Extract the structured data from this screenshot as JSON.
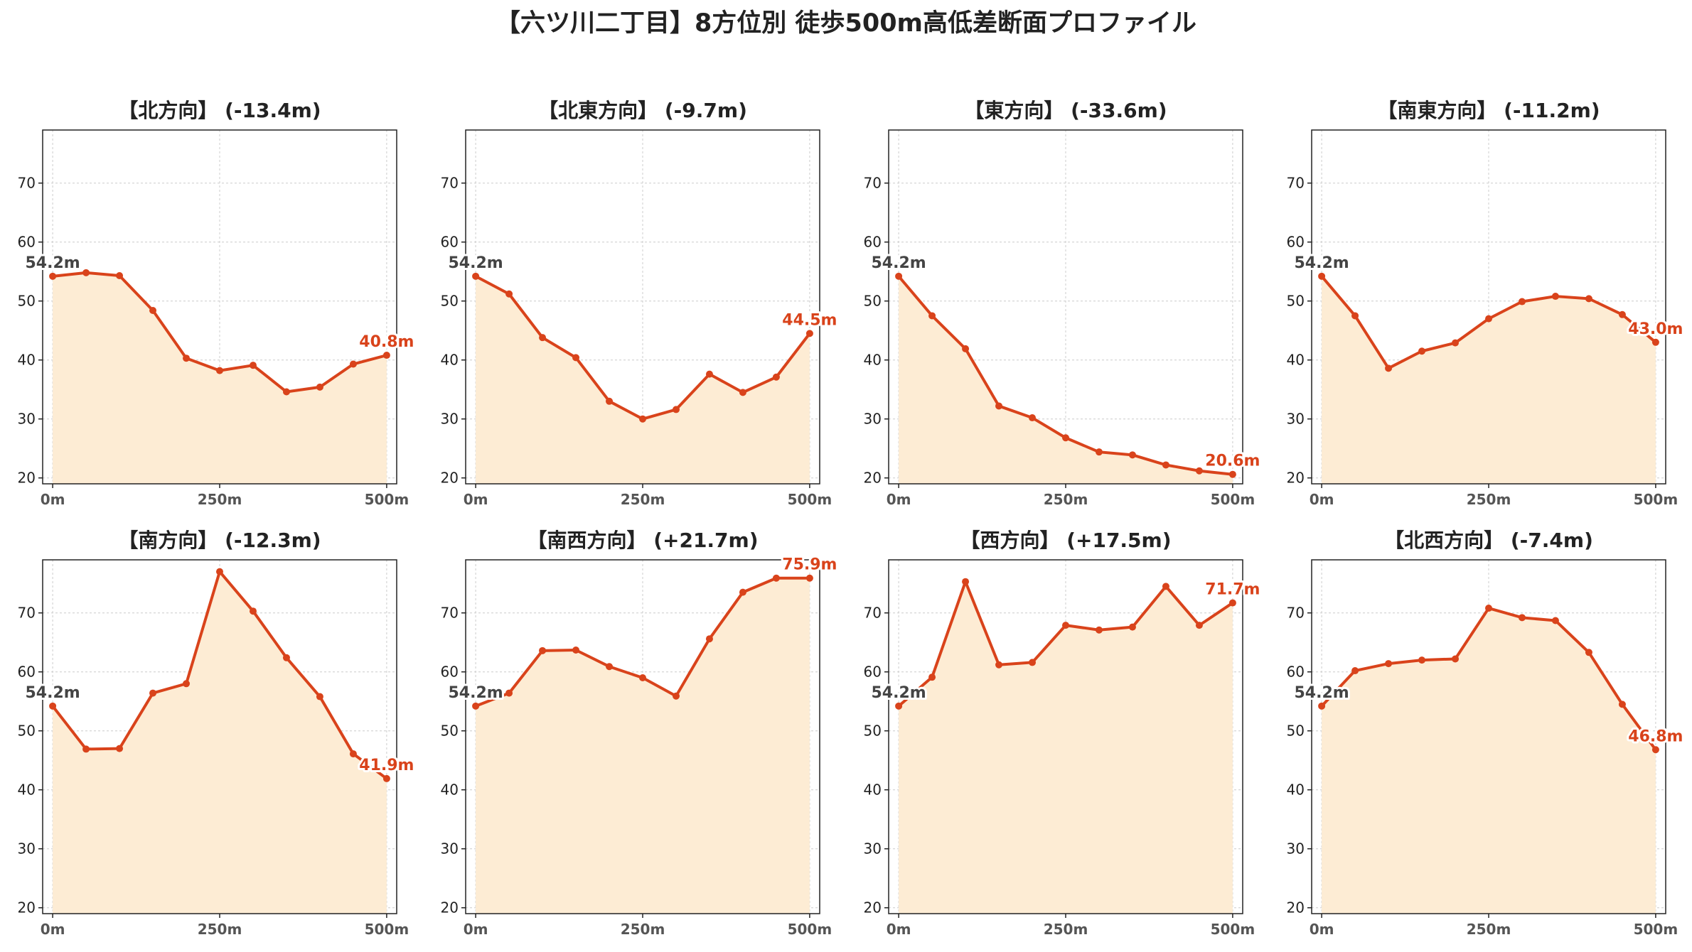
{
  "title": "【六ツ川二丁目】8方位別 徒歩500m高低差断面プロファイル",
  "colors": {
    "line": "#d9431b",
    "fill": "#fdecd4",
    "start_label": "#444444",
    "end_label": "#d9431b",
    "grid": "#cccccc"
  },
  "chart_data": [
    {
      "type": "area",
      "title": "【北方向】 (-13.4m)",
      "start_label": "54.2m",
      "end_label": "40.8m",
      "x": [
        0,
        50,
        100,
        150,
        200,
        250,
        300,
        350,
        400,
        450,
        500
      ],
      "values": [
        54.2,
        54.8,
        54.3,
        48.4,
        40.3,
        38.2,
        39.1,
        34.6,
        35.4,
        39.3,
        40.8
      ],
      "xticks": [
        "0m",
        "250m",
        "500m"
      ],
      "yticks": [
        20,
        30,
        40,
        50,
        60,
        70
      ],
      "ylim": [
        19,
        79
      ],
      "xlim": [
        -15,
        515
      ],
      "grid": true
    },
    {
      "type": "area",
      "title": "【北東方向】 (-9.7m)",
      "start_label": "54.2m",
      "end_label": "44.5m",
      "x": [
        0,
        50,
        100,
        150,
        200,
        250,
        300,
        350,
        400,
        450,
        500
      ],
      "values": [
        54.2,
        51.2,
        43.8,
        40.4,
        33.0,
        30.0,
        31.6,
        37.6,
        34.5,
        37.1,
        44.5
      ],
      "xticks": [
        "0m",
        "250m",
        "500m"
      ],
      "yticks": [
        20,
        30,
        40,
        50,
        60,
        70
      ],
      "ylim": [
        19,
        79
      ],
      "xlim": [
        -15,
        515
      ],
      "grid": true
    },
    {
      "type": "area",
      "title": "【東方向】 (-33.6m)",
      "start_label": "54.2m",
      "end_label": "20.6m",
      "x": [
        0,
        50,
        100,
        150,
        200,
        250,
        300,
        350,
        400,
        450,
        500
      ],
      "values": [
        54.2,
        47.5,
        41.9,
        32.2,
        30.2,
        26.8,
        24.4,
        23.9,
        22.2,
        21.2,
        20.6
      ],
      "xticks": [
        "0m",
        "250m",
        "500m"
      ],
      "yticks": [
        20,
        30,
        40,
        50,
        60,
        70
      ],
      "ylim": [
        19,
        79
      ],
      "xlim": [
        -15,
        515
      ],
      "grid": true
    },
    {
      "type": "area",
      "title": "【南東方向】 (-11.2m)",
      "start_label": "54.2m",
      "end_label": "43.0m",
      "x": [
        0,
        50,
        100,
        150,
        200,
        250,
        300,
        350,
        400,
        450,
        500
      ],
      "values": [
        54.2,
        47.5,
        38.6,
        41.5,
        42.9,
        47.0,
        49.9,
        50.8,
        50.4,
        47.7,
        43.0
      ],
      "xticks": [
        "0m",
        "250m",
        "500m"
      ],
      "yticks": [
        20,
        30,
        40,
        50,
        60,
        70
      ],
      "ylim": [
        19,
        79
      ],
      "xlim": [
        -15,
        515
      ],
      "grid": true
    },
    {
      "type": "area",
      "title": "【南方向】 (-12.3m)",
      "start_label": "54.2m",
      "end_label": "41.9m",
      "x": [
        0,
        50,
        100,
        150,
        200,
        250,
        300,
        350,
        400,
        450,
        500
      ],
      "values": [
        54.2,
        46.9,
        47.0,
        56.4,
        58.0,
        77.0,
        70.3,
        62.4,
        55.8,
        46.1,
        41.9
      ],
      "xticks": [
        "0m",
        "250m",
        "500m"
      ],
      "yticks": [
        20,
        30,
        40,
        50,
        60,
        70
      ],
      "ylim": [
        19,
        79
      ],
      "xlim": [
        -15,
        515
      ],
      "grid": true
    },
    {
      "type": "area",
      "title": "【南西方向】 (+21.7m)",
      "start_label": "54.2m",
      "end_label": "75.9m",
      "x": [
        0,
        50,
        100,
        150,
        200,
        250,
        300,
        350,
        400,
        450,
        500
      ],
      "values": [
        54.2,
        56.4,
        63.6,
        63.7,
        60.9,
        59.0,
        55.9,
        65.6,
        73.5,
        75.9,
        75.9
      ],
      "xticks": [
        "0m",
        "250m",
        "500m"
      ],
      "yticks": [
        20,
        30,
        40,
        50,
        60,
        70
      ],
      "ylim": [
        19,
        79
      ],
      "xlim": [
        -15,
        515
      ],
      "grid": true
    },
    {
      "type": "area",
      "title": "【西方向】 (+17.5m)",
      "start_label": "54.2m",
      "end_label": "71.7m",
      "x": [
        0,
        50,
        100,
        150,
        200,
        250,
        300,
        350,
        400,
        450,
        500
      ],
      "values": [
        54.2,
        59.1,
        75.3,
        61.2,
        61.6,
        67.9,
        67.1,
        67.6,
        74.5,
        67.9,
        71.7
      ],
      "xticks": [
        "0m",
        "250m",
        "500m"
      ],
      "yticks": [
        20,
        30,
        40,
        50,
        60,
        70
      ],
      "ylim": [
        19,
        79
      ],
      "xlim": [
        -15,
        515
      ],
      "grid": true
    },
    {
      "type": "area",
      "title": "【北西方向】 (-7.4m)",
      "start_label": "54.2m",
      "end_label": "46.8m",
      "x": [
        0,
        50,
        100,
        150,
        200,
        250,
        300,
        350,
        400,
        450,
        500
      ],
      "values": [
        54.2,
        60.2,
        61.4,
        62.0,
        62.2,
        70.8,
        69.2,
        68.7,
        63.3,
        54.5,
        46.8
      ],
      "xticks": [
        "0m",
        "250m",
        "500m"
      ],
      "yticks": [
        20,
        30,
        40,
        50,
        60,
        70
      ],
      "ylim": [
        19,
        79
      ],
      "xlim": [
        -15,
        515
      ],
      "grid": true
    }
  ]
}
